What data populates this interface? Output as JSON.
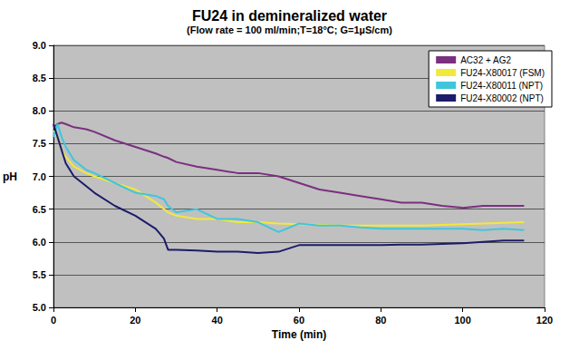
{
  "chart_data": {
    "type": "line",
    "title": "FU24 in demineralized water",
    "subtitle": "(Flow rate = 100 ml/min;T=18°C; G=1µS/cm)",
    "x_label": "Time (min)",
    "y_label": "pH",
    "x": [
      0,
      1,
      2,
      3,
      5,
      8,
      10,
      15,
      20,
      25,
      27,
      28,
      30,
      35,
      40,
      45,
      50,
      55,
      60,
      65,
      70,
      75,
      80,
      85,
      90,
      95,
      100,
      105,
      110,
      115
    ],
    "series": [
      {
        "name": "AC32 + AG2",
        "color": "#7b2f80",
        "values": [
          7.75,
          7.8,
          7.82,
          7.8,
          7.75,
          7.72,
          7.68,
          7.55,
          7.45,
          7.35,
          7.3,
          7.28,
          7.22,
          7.15,
          7.1,
          7.05,
          7.05,
          7.0,
          6.9,
          6.8,
          6.75,
          6.7,
          6.65,
          6.6,
          6.6,
          6.55,
          6.52,
          6.55,
          6.55,
          6.55
        ]
      },
      {
        "name": "FU24-X80017 (FSM)",
        "color": "#f2e93a",
        "values": [
          7.7,
          7.6,
          7.4,
          7.3,
          7.15,
          7.05,
          7.0,
          6.9,
          6.8,
          6.6,
          6.5,
          6.45,
          6.4,
          6.35,
          6.35,
          6.3,
          6.3,
          6.28,
          6.27,
          6.26,
          6.25,
          6.25,
          6.25,
          6.25,
          6.25,
          6.26,
          6.27,
          6.28,
          6.29,
          6.3
        ]
      },
      {
        "name": "FU24-X80011 (NPT)",
        "color": "#3fc6dc",
        "values": [
          7.6,
          7.8,
          7.6,
          7.45,
          7.25,
          7.1,
          7.05,
          6.9,
          6.75,
          6.7,
          6.65,
          6.55,
          6.45,
          6.5,
          6.35,
          6.35,
          6.3,
          6.15,
          6.28,
          6.25,
          6.25,
          6.22,
          6.2,
          6.2,
          6.2,
          6.2,
          6.2,
          6.18,
          6.2,
          6.18
        ]
      },
      {
        "name": "FU24-X80002 (NPT)",
        "color": "#1c1c6b",
        "values": [
          7.8,
          7.6,
          7.4,
          7.2,
          7.0,
          6.85,
          6.75,
          6.55,
          6.4,
          6.2,
          6.05,
          5.88,
          5.88,
          5.87,
          5.85,
          5.85,
          5.83,
          5.85,
          5.95,
          5.95,
          5.95,
          5.95,
          5.95,
          5.96,
          5.96,
          5.97,
          5.98,
          6.0,
          6.02,
          6.02
        ]
      }
    ],
    "xlim": [
      0,
      120
    ],
    "xticks": [
      0,
      20,
      40,
      60,
      80,
      100,
      120
    ],
    "ylim": [
      5,
      9
    ],
    "yticks": [
      {
        "value": 5,
        "label": "5.0"
      },
      5.5,
      {
        "value": 6,
        "label": "6.0"
      },
      6.5,
      {
        "value": 7,
        "label": "7.0"
      },
      7.5,
      {
        "value": 8,
        "label": "8.0"
      },
      8.5,
      {
        "value": 9,
        "label": "9.0"
      }
    ],
    "grid": true,
    "legend": "upper right",
    "marker": "none",
    "line_style": "solid"
  }
}
